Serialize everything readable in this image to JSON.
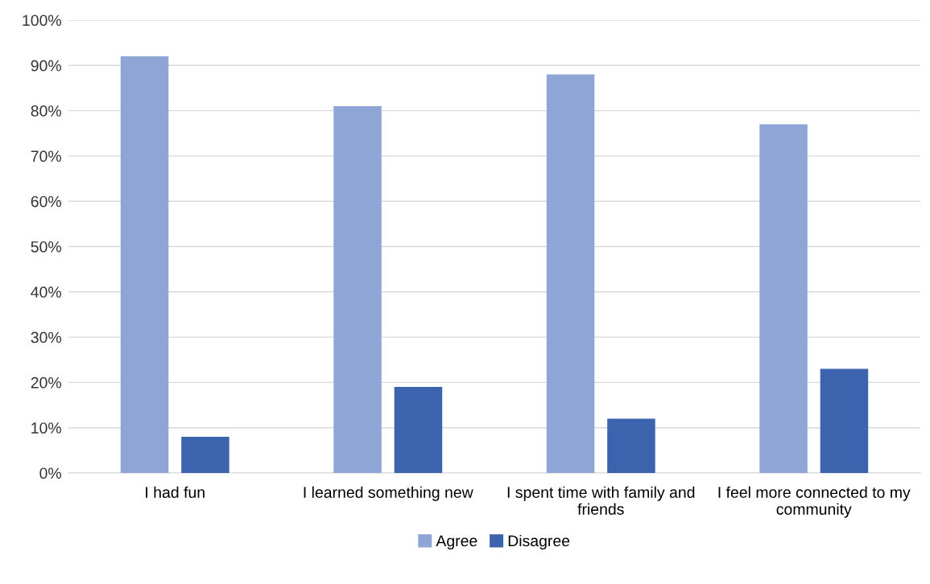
{
  "chart_data": {
    "type": "bar",
    "categories": [
      "I had fun",
      "I learned something new",
      "I spent time with family and\nfriends",
      "I feel more connected to my\ncommunity"
    ],
    "series": [
      {
        "name": "Agree",
        "color": "#8fa5d6",
        "values": [
          92,
          81,
          88,
          77
        ]
      },
      {
        "name": "Disagree",
        "color": "#3c64ae",
        "values": [
          8,
          19,
          12,
          23
        ]
      }
    ],
    "ylim": [
      0,
      100
    ],
    "yticks": [
      {
        "value": 0,
        "label": "0%"
      },
      {
        "value": 10,
        "label": "10%"
      },
      {
        "value": 20,
        "label": "20%"
      },
      {
        "value": 30,
        "label": "30%"
      },
      {
        "value": 40,
        "label": "40%"
      },
      {
        "value": 50,
        "label": "50%"
      },
      {
        "value": 60,
        "label": "60%"
      },
      {
        "value": 70,
        "label": "70%"
      },
      {
        "value": 80,
        "label": "80%"
      },
      {
        "value": 90,
        "label": "90%"
      },
      {
        "value": 100,
        "label": "100%"
      }
    ],
    "grid": "y",
    "legend": "bottom"
  }
}
